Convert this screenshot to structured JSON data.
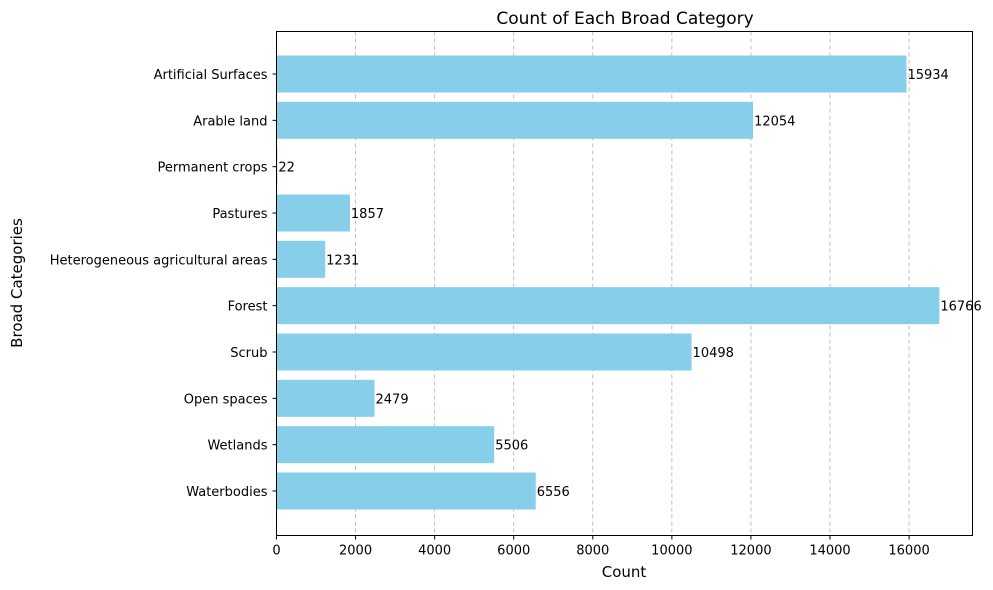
{
  "chart_data": {
    "type": "bar",
    "orientation": "horizontal",
    "title": "Count of Each Broad Category",
    "xlabel": "Count",
    "ylabel": "Broad Categories",
    "categories": [
      "Artificial Surfaces",
      "Arable land",
      "Permanent crops",
      "Pastures",
      "Heterogeneous agricultural areas",
      "Forest",
      "Scrub",
      "Open spaces",
      "Wetlands",
      "Waterbodies"
    ],
    "values": [
      15934,
      12054,
      22,
      1857,
      1231,
      16766,
      10498,
      2479,
      5506,
      6556
    ],
    "xlim": [
      0,
      17604
    ],
    "xticks": [
      0,
      2000,
      4000,
      6000,
      8000,
      10000,
      12000,
      14000,
      16000
    ],
    "grid": "x",
    "bar_color": "#87ceeb"
  }
}
